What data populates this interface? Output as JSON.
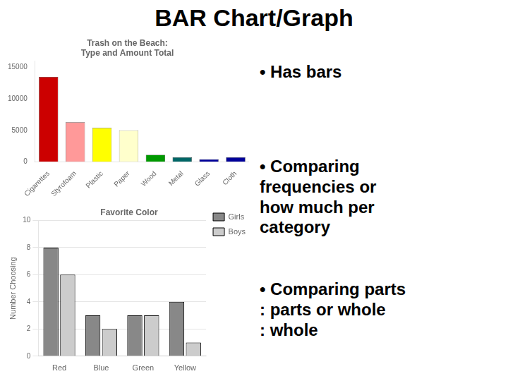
{
  "title": "BAR Chart/Graph",
  "annotations": [
    "• Has bars",
    "• Comparing\nfrequencies or\nhow much per\ncategory",
    "• Comparing parts\n: parts or whole\n: whole"
  ],
  "chart_data": [
    {
      "type": "bar",
      "title": "Trash on the Beach:\nType and Amount Total",
      "categories": [
        "Cigarettes",
        "Styrofoam",
        "Plastic",
        "Paper",
        "Wood",
        "Metal",
        "Glass",
        "Cloth"
      ],
      "values": [
        13500,
        6300,
        5400,
        5000,
        1100,
        700,
        400,
        700
      ],
      "colors": [
        "#cc0000",
        "#ff9999",
        "#ffff00",
        "#ffffcc",
        "#009900",
        "#006666",
        "#000099",
        "#000099"
      ],
      "ylim": [
        0,
        16000
      ],
      "yticks": [
        0,
        5000,
        10000,
        15000
      ],
      "grid": false
    },
    {
      "type": "bar",
      "title": "Favorite Color",
      "categories": [
        "Red",
        "Blue",
        "Green",
        "Yellow"
      ],
      "series": [
        {
          "name": "Girls",
          "color": "#888888",
          "values": [
            8,
            3,
            3,
            4
          ]
        },
        {
          "name": "Boys",
          "color": "#cccccc",
          "values": [
            6,
            2,
            3,
            1
          ]
        }
      ],
      "ylabel": "Number Choosing",
      "ylim": [
        0,
        10
      ],
      "yticks": [
        0,
        2,
        4,
        6,
        8,
        10
      ],
      "grid": true,
      "legend": "right"
    }
  ]
}
